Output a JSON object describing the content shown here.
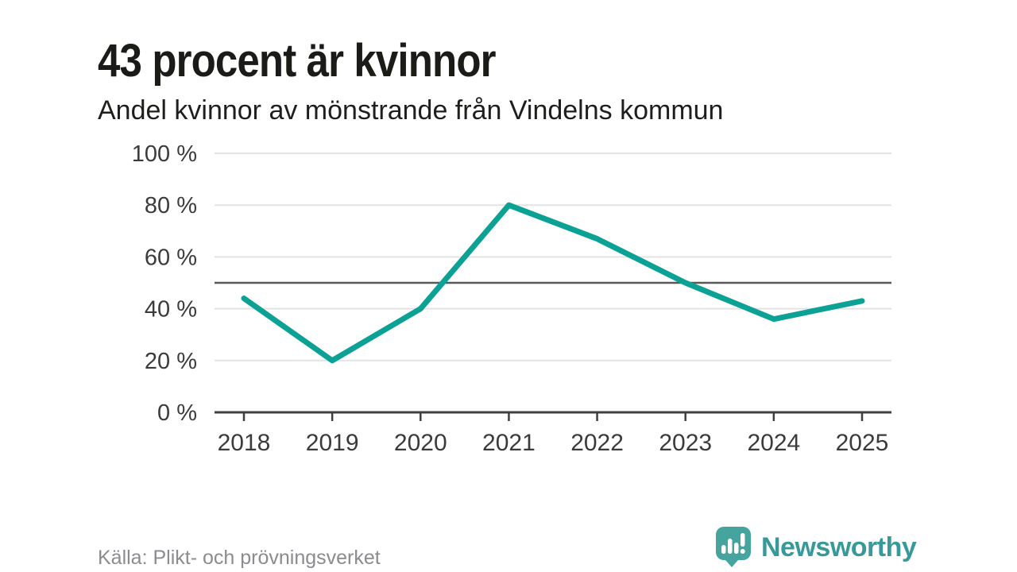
{
  "header": {
    "title": "43 procent är kvinnor",
    "subtitle": "Andel kvinnor av mönstrande från Vindelns kommun"
  },
  "chart_data": {
    "type": "line",
    "title": "43 procent är kvinnor",
    "subtitle": "Andel kvinnor av mönstrande från Vindelns kommun",
    "categories": [
      "2018",
      "2019",
      "2020",
      "2021",
      "2022",
      "2023",
      "2024",
      "2025"
    ],
    "series": [
      {
        "name": "Andel kvinnor av mönstrande",
        "color": "#0ba295",
        "values": [
          44,
          20,
          40,
          80,
          67,
          50,
          36,
          43
        ]
      }
    ],
    "unit": "%",
    "ylim": [
      0,
      100
    ],
    "yticks": [
      0,
      20,
      40,
      60,
      80,
      100
    ],
    "ytick_labels": [
      "0 %",
      "20 %",
      "40 %",
      "60 %",
      "80 %",
      "100 %"
    ],
    "reference_line": {
      "value": 50,
      "color": "#58585a"
    },
    "grid": true,
    "legend": "none",
    "style": {
      "grid_color": "#e3e3e3",
      "axis_color": "#3f3f3f",
      "tick_label_color": "#3b3b3b",
      "line_width": 7
    }
  },
  "footer": {
    "source": "Källa: Plikt- och prövningsverket",
    "brand": {
      "name": "Newsworthy",
      "color": "#38999a",
      "icon_color": "#45a49e",
      "icon": "newsworthy-speech-bubble-chart-icon"
    }
  }
}
